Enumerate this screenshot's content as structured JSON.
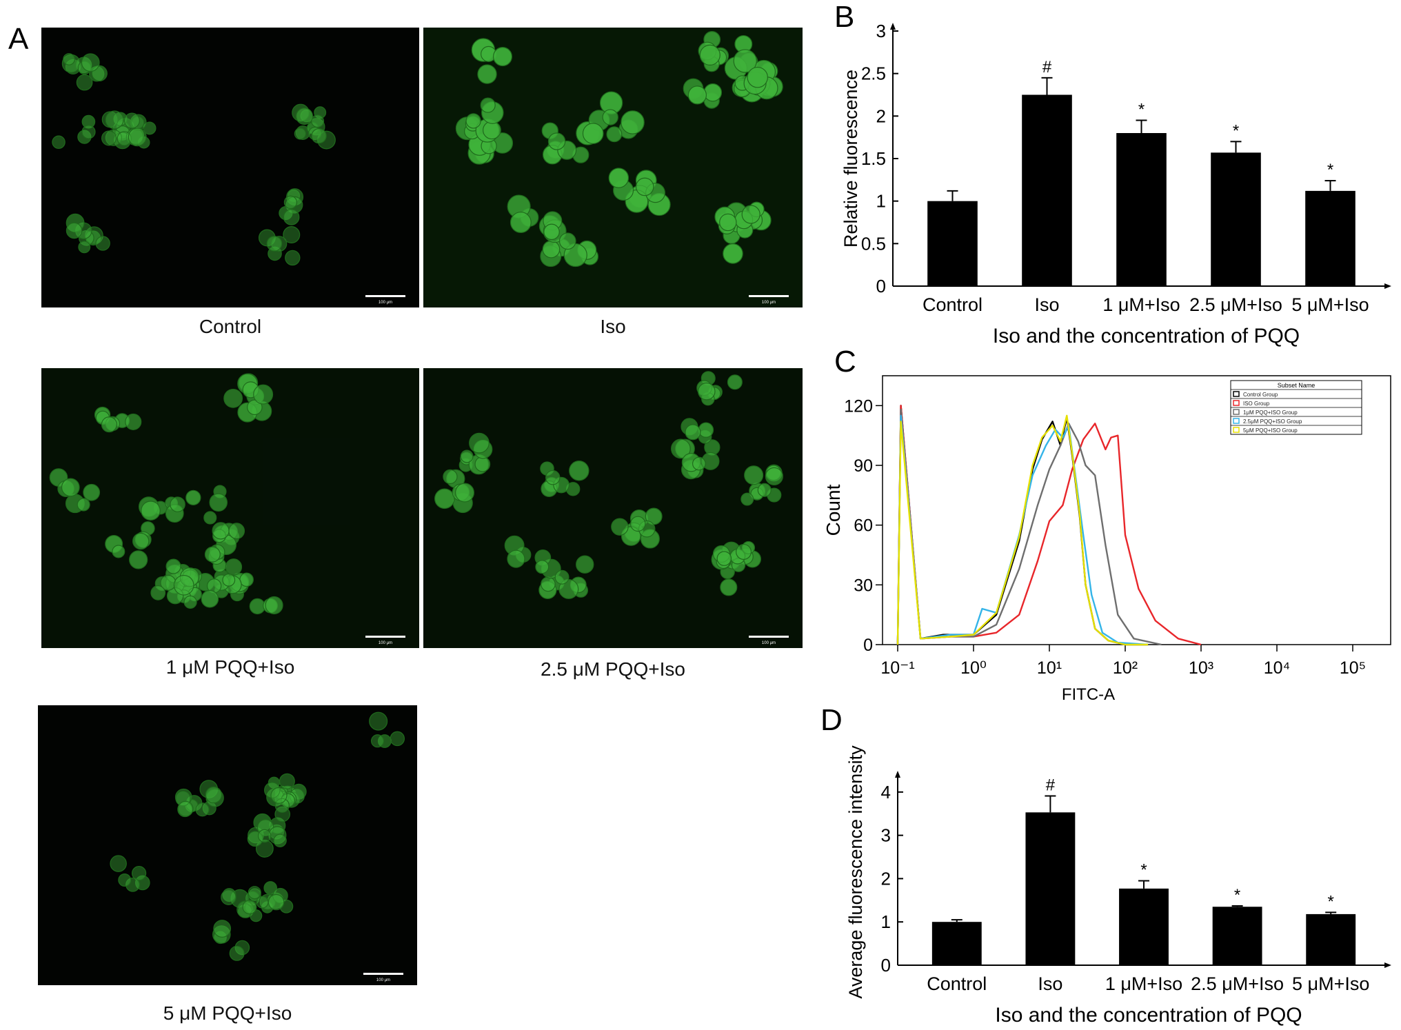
{
  "panel_labels": {
    "a": "A",
    "b": "B",
    "c": "C",
    "d": "D"
  },
  "microscopy": [
    {
      "caption": "Control",
      "intensity": "dim",
      "scale_bar_text": "100 μm"
    },
    {
      "caption": "Iso",
      "intensity": "bright",
      "scale_bar_text": "100 μm"
    },
    {
      "caption": "1 μM PQQ+Iso",
      "intensity": "medium",
      "scale_bar_text": "100 μm"
    },
    {
      "caption": "2.5 μM PQQ+Iso",
      "intensity": "medium",
      "scale_bar_text": "100 μm"
    },
    {
      "caption": "5 μM PQQ+Iso",
      "intensity": "dim",
      "scale_bar_text": "100 μm"
    }
  ],
  "colors": {
    "bar": "#000000",
    "cell": "#3fb23a",
    "background": "#020402"
  },
  "chart_data": [
    {
      "id": "B",
      "type": "bar",
      "categories": [
        "Control",
        "Iso",
        "1 μM+Iso",
        "2.5 μM+Iso",
        "5 μM+Iso"
      ],
      "values": [
        1.0,
        2.25,
        1.8,
        1.57,
        1.12
      ],
      "errors": [
        0.12,
        0.2,
        0.15,
        0.13,
        0.12
      ],
      "annotations": [
        "",
        "#",
        "*",
        "*",
        "*"
      ],
      "ylabel": "Relative fluorescence",
      "xlabel": "Iso and the concentration of PQQ",
      "ylim": [
        0,
        3
      ],
      "yticks": [
        "0",
        "0.5",
        "1",
        "1.5",
        "2",
        "2.5",
        "3"
      ]
    },
    {
      "id": "C",
      "type": "line",
      "xscale": "log",
      "xlabel": "FITC-A",
      "ylabel": "Count",
      "ylim": [
        0,
        135
      ],
      "yticks": [
        "0",
        "30",
        "60",
        "90",
        "120"
      ],
      "xticks": [
        "10⁻¹",
        "10⁰",
        "10¹",
        "10²",
        "10³",
        "10⁴",
        "10⁵"
      ],
      "legend_title": "Subset Name",
      "legend_position": "top-right",
      "series": [
        {
          "name": "Control Group",
          "color": "#000000",
          "x": [
            0.1,
            0.11,
            0.2,
            0.4,
            1.0,
            2,
            4,
            6,
            8,
            11,
            14,
            17,
            20,
            25,
            30,
            40,
            60,
            100,
            200
          ],
          "y": [
            0,
            120,
            3,
            5,
            5,
            15,
            52,
            88,
            103,
            112,
            100,
            114,
            95,
            65,
            30,
            8,
            2,
            0,
            0
          ]
        },
        {
          "name": "ISO Group",
          "color": "#e8262a",
          "x": [
            0.1,
            0.11,
            0.2,
            0.5,
            1.0,
            2,
            4,
            7,
            10,
            15,
            20,
            28,
            40,
            55,
            65,
            80,
            100,
            150,
            250,
            500,
            1000
          ],
          "y": [
            0,
            120,
            3,
            4,
            4,
            6,
            15,
            42,
            62,
            70,
            88,
            103,
            111,
            98,
            104,
            105,
            55,
            28,
            12,
            3,
            0
          ]
        },
        {
          "name": "1μM PQQ+ISO Group",
          "color": "#6e6e6e",
          "x": [
            0.1,
            0.11,
            0.2,
            0.5,
            1.0,
            2,
            4,
            7,
            10,
            14,
            18,
            24,
            30,
            40,
            55,
            80,
            130,
            300
          ],
          "y": [
            0,
            118,
            3,
            4,
            4,
            10,
            38,
            70,
            88,
            100,
            111,
            102,
            90,
            85,
            50,
            15,
            3,
            0
          ]
        },
        {
          "name": "2.5μM PQQ+ISO Group",
          "color": "#34b4e8",
          "x": [
            0.1,
            0.11,
            0.2,
            0.5,
            1.0,
            1.3,
            2,
            4,
            6,
            9,
            12,
            15,
            18,
            22,
            28,
            36,
            50,
            80,
            200
          ],
          "y": [
            0,
            115,
            3,
            5,
            5,
            18,
            16,
            55,
            85,
            100,
            108,
            104,
            110,
            85,
            55,
            25,
            6,
            1,
            0
          ]
        },
        {
          "name": "5μM PQQ+ISO Group",
          "color": "#e6e000",
          "x": [
            0.1,
            0.11,
            0.2,
            0.5,
            1.0,
            2,
            4,
            6,
            8,
            11,
            14,
            17,
            20,
            25,
            30,
            40,
            60,
            100,
            200
          ],
          "y": [
            0,
            112,
            3,
            4,
            5,
            16,
            54,
            90,
            104,
            110,
            102,
            115,
            96,
            66,
            30,
            8,
            2,
            0,
            0
          ]
        }
      ]
    },
    {
      "id": "D",
      "type": "bar",
      "categories": [
        "Control",
        "Iso",
        "1 μM+Iso",
        "2.5 μM+Iso",
        "5 μM+Iso"
      ],
      "values": [
        1.0,
        3.53,
        1.77,
        1.35,
        1.18
      ],
      "errors": [
        0.05,
        0.38,
        0.18,
        0.02,
        0.04
      ],
      "annotations": [
        "",
        "#",
        "*",
        "*",
        "*"
      ],
      "ylabel": "Average fluorescence intensity",
      "xlabel": "Iso and the concentration of PQQ",
      "ylim": [
        0,
        4.3
      ],
      "yticks": [
        "0",
        "1",
        "2",
        "3",
        "4"
      ]
    }
  ]
}
